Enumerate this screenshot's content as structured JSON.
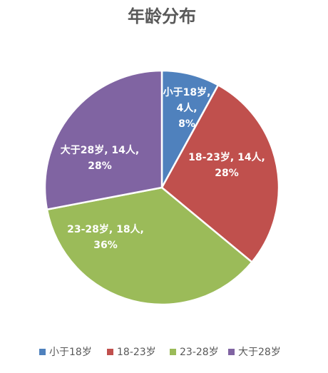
{
  "chart_data": {
    "type": "pie",
    "title": "年龄分布",
    "categories": [
      "小于18岁",
      "18-23岁",
      "23-28岁",
      "大于28岁"
    ],
    "values": [
      4,
      14,
      18,
      14
    ],
    "value_labels": [
      [
        "小于18岁,",
        "4人,",
        "8%"
      ],
      [
        "18-23岁, 14人,",
        "28%"
      ],
      [
        "23-28岁, 18人,",
        "36%"
      ],
      [
        "大于28岁, 14人,",
        "28%"
      ]
    ],
    "colors": [
      "#4f81bd",
      "#c0504d",
      "#9bbb59",
      "#8064a2"
    ],
    "legend": "bottom"
  }
}
